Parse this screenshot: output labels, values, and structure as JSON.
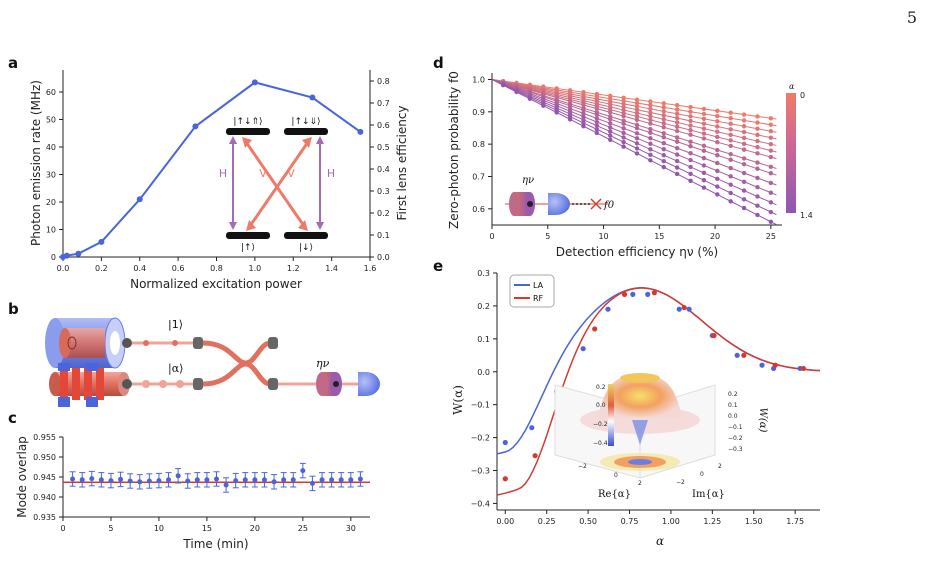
{
  "page_number": "5",
  "panel_labels": {
    "a": "a",
    "b": "b",
    "c": "c",
    "d": "d",
    "e": "e"
  },
  "colors": {
    "blue": "#4a64de",
    "red": "#d63a2f",
    "salmon": "#ee7a6a",
    "purple": "#a46cb3",
    "magenta": "#b85e9a"
  },
  "chart_data": [
    {
      "panel": "a",
      "type": "line",
      "xlabel": "Normalized excitation power",
      "ylabel_left": "Photon emission rate (MHz)",
      "ylabel_right": "First lens efficiency",
      "xlim": [
        0,
        1.6
      ],
      "ylim": [
        0,
        68
      ],
      "ylim_right": [
        0,
        0.85
      ],
      "x_ticks": [
        "0.0",
        "0.2",
        "0.4",
        "0.6",
        "0.8",
        "1.0",
        "1.2",
        "1.4",
        "1.6"
      ],
      "y_ticks": [
        "0",
        "10",
        "20",
        "30",
        "40",
        "50",
        "60"
      ],
      "y_right_ticks": [
        "0.0",
        "0.1",
        "0.2",
        "0.3",
        "0.4",
        "0.5",
        "0.6",
        "0.7",
        "0.8"
      ],
      "x": [
        0,
        0.02,
        0.08,
        0.2,
        0.4,
        0.69,
        1.0,
        1.3,
        1.55
      ],
      "y": [
        0,
        0.5,
        1.2,
        5.5,
        21,
        47.5,
        63.5,
        58,
        45.5
      ],
      "inset_levels": {
        "top": [
          "|↑↓⇑⟩",
          "|↑↓⇓⟩"
        ],
        "bottom": [
          "|↑⟩",
          "|↓⟩"
        ],
        "transitions": [
          "H",
          "V",
          "V",
          "H"
        ]
      }
    },
    {
      "panel": "c",
      "type": "scatter",
      "xlabel": "Time (min)",
      "ylabel": "Mode overlap",
      "xlim": [
        0,
        32
      ],
      "ylim": [
        0.935,
        0.955
      ],
      "x_ticks": [
        "0",
        "5",
        "10",
        "15",
        "20",
        "25",
        "30"
      ],
      "y_ticks": [
        "0.935",
        "0.940",
        "0.945",
        "0.950",
        "0.955"
      ],
      "mean_line": 0.9437,
      "x": [
        1,
        2,
        3,
        4,
        5,
        6,
        7,
        8,
        9,
        10,
        11,
        12,
        13,
        14,
        15,
        16,
        17,
        18,
        19,
        20,
        21,
        22,
        23,
        24,
        25,
        26,
        27,
        28,
        29,
        30,
        31
      ],
      "y": [
        0.9445,
        0.9443,
        0.9446,
        0.9443,
        0.9441,
        0.9444,
        0.944,
        0.9438,
        0.944,
        0.9441,
        0.9443,
        0.9453,
        0.944,
        0.9443,
        0.9443,
        0.9445,
        0.943,
        0.9441,
        0.9443,
        0.9443,
        0.9443,
        0.9438,
        0.9443,
        0.9443,
        0.9466,
        0.9434,
        0.9443,
        0.9443,
        0.9443,
        0.9443,
        0.9445
      ],
      "yerr": 0.0018
    },
    {
      "panel": "d",
      "type": "scatter",
      "xlabel": "Detection efficiency ην (%)",
      "ylabel": "Zero-photon probability f0",
      "xlim": [
        0,
        26
      ],
      "ylim": [
        0.55,
        1.02
      ],
      "x_ticks": [
        "0",
        "5",
        "10",
        "15",
        "20",
        "25"
      ],
      "y_ticks": [
        "0.6",
        "0.7",
        "0.8",
        "0.9",
        "1.0"
      ],
      "colorbar": {
        "label": "α",
        "min": "0",
        "max": "1.4"
      },
      "curves_end_values": [
        0.88,
        0.86,
        0.84,
        0.82,
        0.8,
        0.78,
        0.76,
        0.73,
        0.71,
        0.68,
        0.65,
        0.62,
        0.59,
        0.56
      ],
      "inset_label": "f0"
    },
    {
      "panel": "e",
      "type": "line",
      "xlabel": "α",
      "ylabel": "W(α)",
      "xlim": [
        -0.05,
        1.9
      ],
      "ylim": [
        -0.42,
        0.3
      ],
      "x_ticks": [
        "0.00",
        "0.25",
        "0.50",
        "0.75",
        "1.00",
        "1.25",
        "1.50",
        "1.75"
      ],
      "y_ticks": [
        "−0.4",
        "−0.3",
        "−0.2",
        "−0.1",
        "0.0",
        "0.1",
        "0.2",
        "0.3"
      ],
      "legend": [
        "LA",
        "RF"
      ],
      "series": [
        {
          "name": "LA",
          "x": [
            0,
            0.16,
            0.31,
            0.47,
            0.62,
            0.77,
            0.86,
            1.05,
            1.11,
            1.25,
            1.4,
            1.55,
            1.62,
            1.78
          ],
          "y": [
            -0.215,
            -0.17,
            -0.06,
            0.07,
            0.19,
            0.235,
            0.235,
            0.19,
            0.19,
            0.11,
            0.05,
            0.02,
            0.01,
            0.01
          ]
        },
        {
          "name": "RF",
          "x": [
            0,
            0.18,
            0.36,
            0.54,
            0.72,
            0.9,
            1.08,
            1.26,
            1.44,
            1.63,
            1.8
          ],
          "y": [
            -0.325,
            -0.255,
            -0.135,
            0.13,
            0.235,
            0.24,
            0.195,
            0.11,
            0.05,
            0.02,
            0.01
          ]
        }
      ],
      "inset": {
        "xlabel": "Re{α}",
        "ylabel": "Im{α}",
        "zlabel": "W(α)",
        "z_ticks": [
          "0.2",
          "0.1",
          "0.0",
          "−0.1",
          "−0.2",
          "−0.3"
        ],
        "colorbar_ticks": [
          "0.2",
          "0.0",
          "−0.2",
          "−0.4"
        ],
        "re_ticks": [
          "−2",
          "0",
          "2"
        ],
        "im_ticks": [
          "−2",
          "0",
          "2"
        ]
      }
    }
  ],
  "panel_b": {
    "ket_one": "|1⟩",
    "ket_alpha": "|α⟩",
    "eta": "ην"
  }
}
